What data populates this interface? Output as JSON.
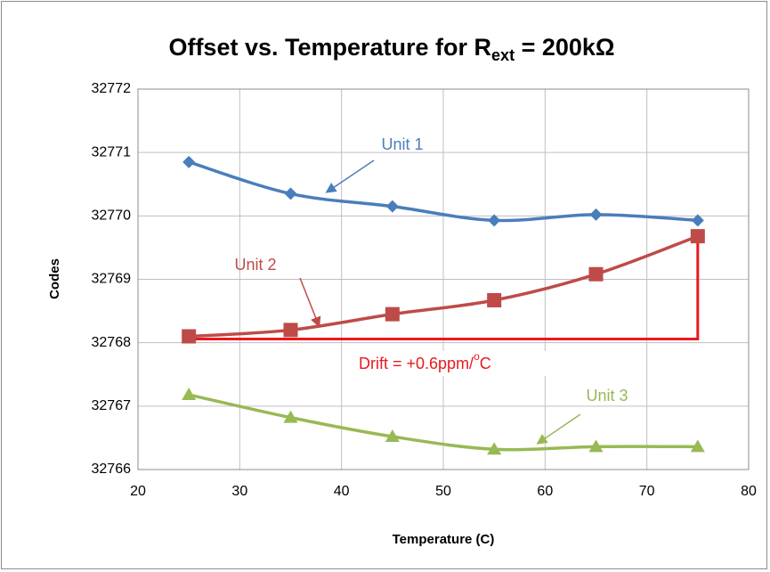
{
  "chart_data": {
    "type": "line",
    "title": [
      "Offset vs. Temperature for R",
      "ext",
      " = 200kΩ"
    ],
    "x_label": "Temperature (C)",
    "y_label": "Codes",
    "x": [
      25,
      35,
      45,
      55,
      65,
      75
    ],
    "series": [
      {
        "name": "Unit 1",
        "color": "#4a7ebb",
        "marker": "diamond",
        "values": [
          32770.85,
          32770.35,
          32770.15,
          32769.93,
          32770.02,
          32769.93
        ]
      },
      {
        "name": "Unit 2",
        "color": "#be4b48",
        "marker": "square",
        "values": [
          32768.1,
          32768.2,
          32768.45,
          32768.67,
          32769.08,
          32769.68
        ]
      },
      {
        "name": "Unit 3",
        "color": "#98b954",
        "marker": "triangle",
        "values": [
          32767.18,
          32766.82,
          32766.52,
          32766.32,
          32766.36,
          32766.36
        ]
      }
    ],
    "annotation": [
      "Drift = +0.6ppm/",
      "o",
      "C"
    ],
    "annotation_color": "#e8191e",
    "xlim": [
      20,
      80
    ],
    "xticks": [
      20,
      30,
      40,
      50,
      60,
      70,
      80
    ],
    "ylim": [
      32766,
      32772
    ],
    "yticks": [
      32766,
      32767,
      32768,
      32769,
      32770,
      32771,
      32772
    ],
    "grid": true
  }
}
